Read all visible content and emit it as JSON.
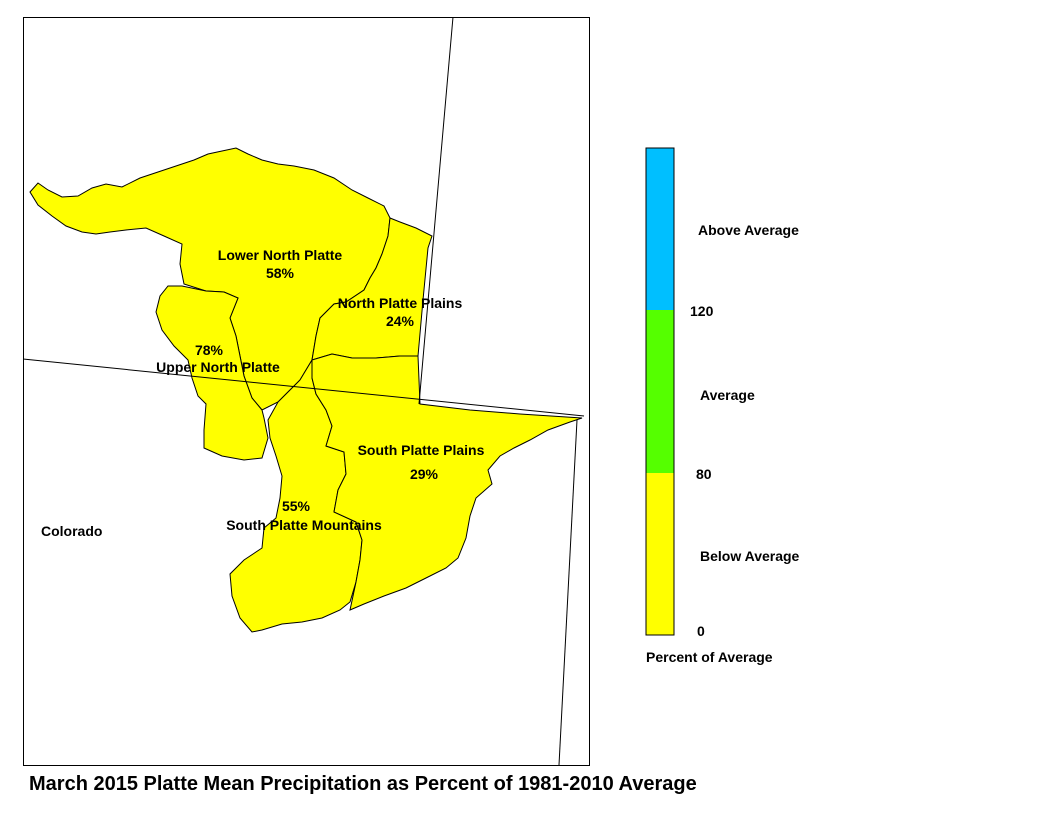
{
  "title": "March 2015 Platte Mean Precipitation as Percent of 1981-2010 Average",
  "state_label": "Colorado",
  "basins": [
    {
      "name": "Lower North Platte",
      "percent": "58%"
    },
    {
      "name": "North Platte Plains",
      "percent": "24%"
    },
    {
      "name": "Upper North Platte",
      "percent": "78%"
    },
    {
      "name": "South Platte Plains",
      "percent": "29%"
    },
    {
      "name": "South Platte Mountains",
      "percent": "55%"
    }
  ],
  "legend": {
    "title": "Percent of Average",
    "categories": [
      {
        "label": "Above Average",
        "color": "#00BFFF"
      },
      {
        "label": "Average",
        "color": "#55FF00"
      },
      {
        "label": "Below Average",
        "color": "#FFFF00"
      }
    ],
    "ticks": [
      "120",
      "80",
      "0"
    ]
  },
  "colors": {
    "basin_fill": "#FFFF00",
    "outline": "#000000"
  }
}
